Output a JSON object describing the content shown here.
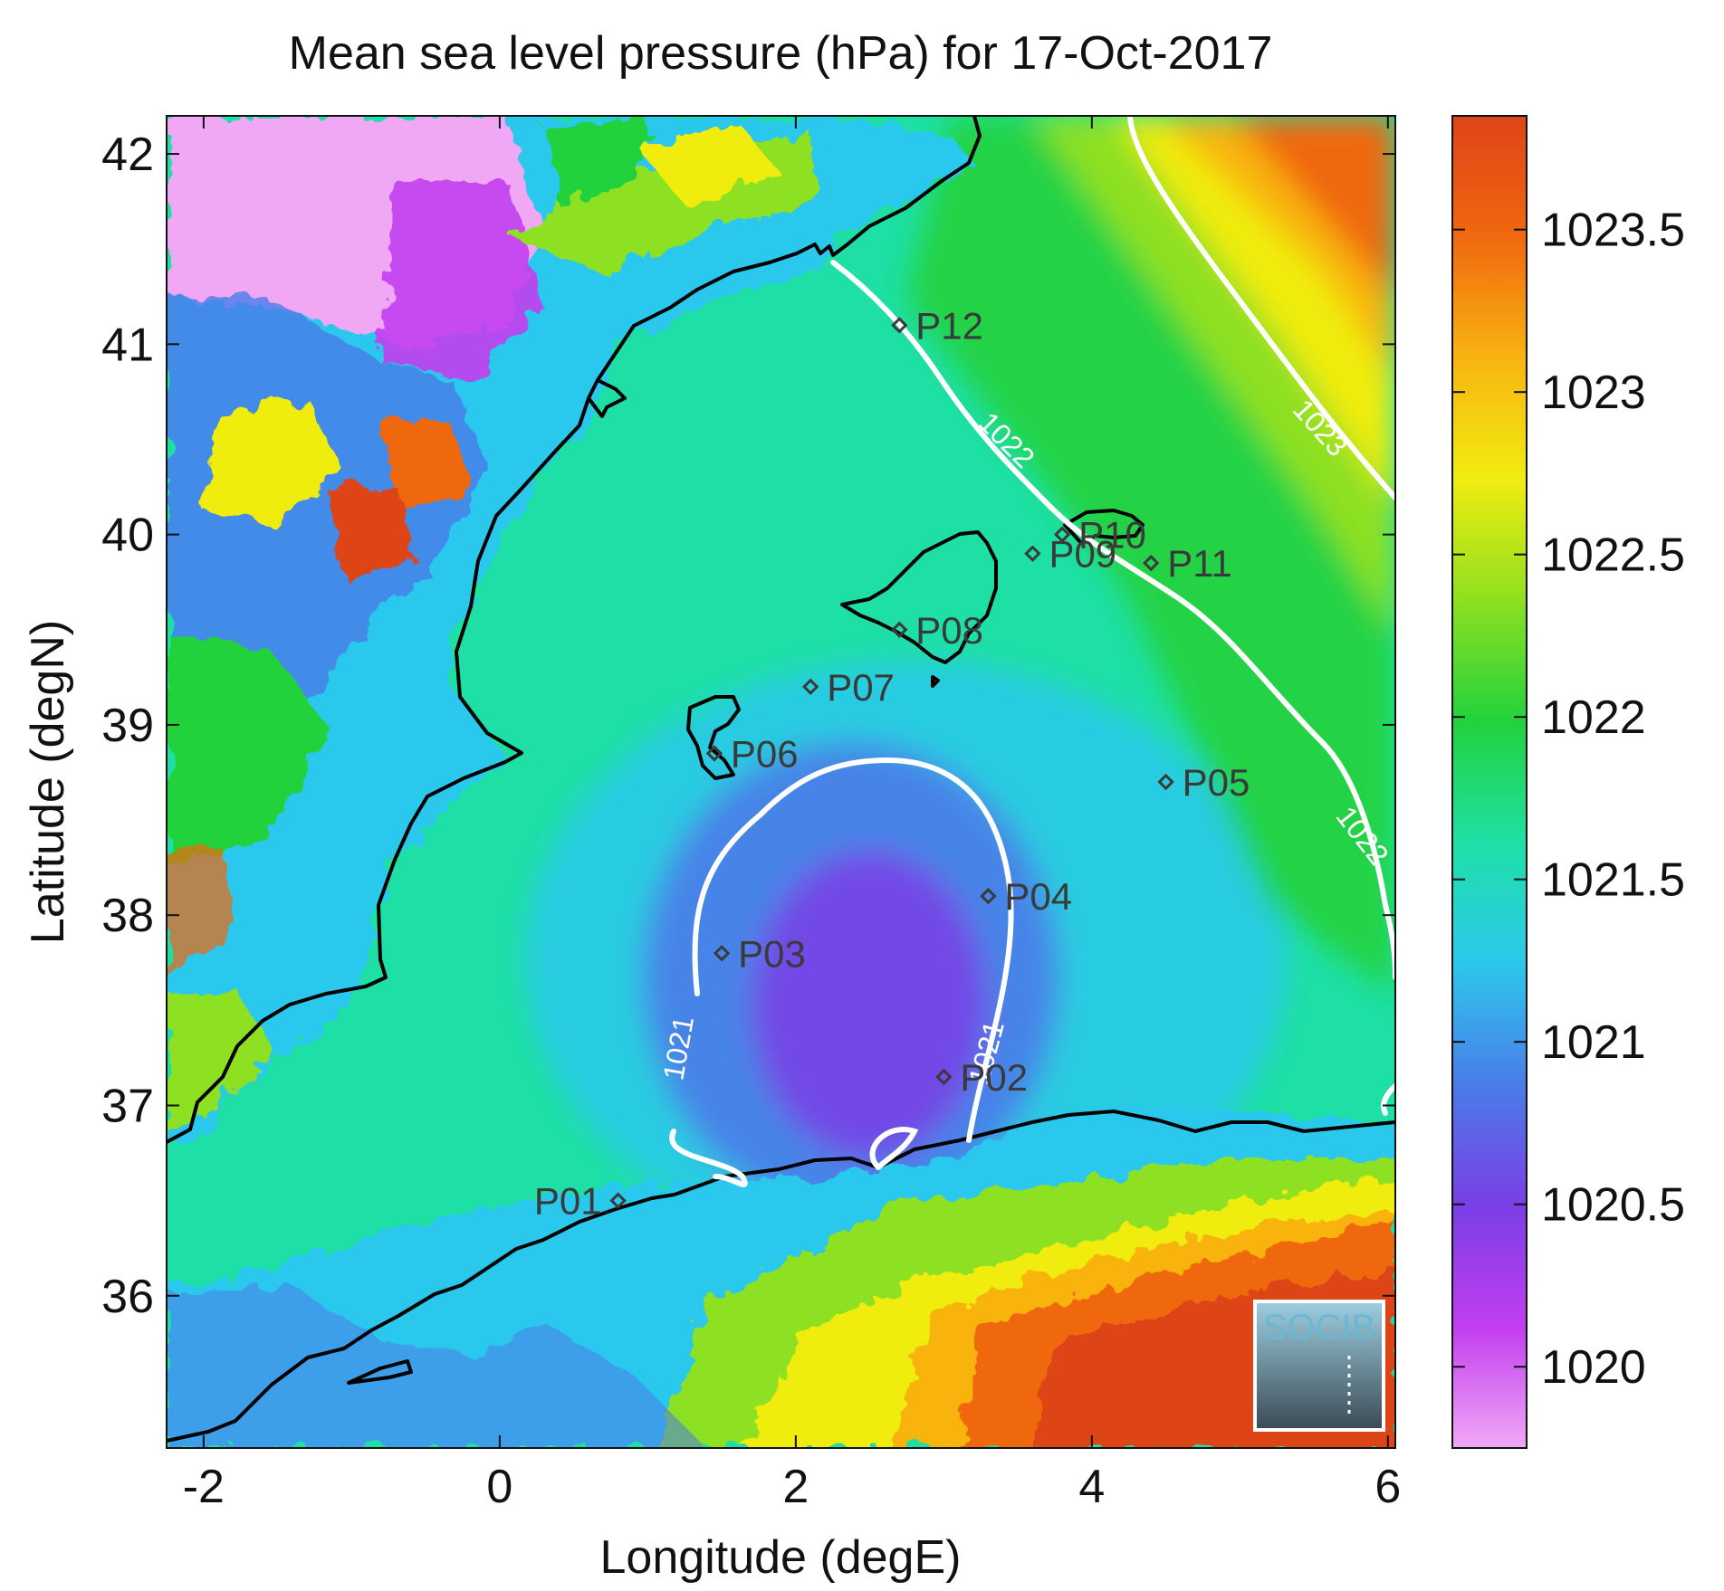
{
  "title": "Mean sea level pressure (hPa) for 17-Oct-2017",
  "x_axis": {
    "label": "Longitude (degE)",
    "ticks": [
      {
        "value": -2,
        "label": "-2"
      },
      {
        "value": 0,
        "label": "0"
      },
      {
        "value": 2,
        "label": "2"
      },
      {
        "value": 4,
        "label": "4"
      },
      {
        "value": 6,
        "label": "6"
      }
    ],
    "range": [
      -2.25,
      6.05
    ]
  },
  "y_axis": {
    "label": "Latitude (degN)",
    "ticks": [
      {
        "value": 36,
        "label": "36"
      },
      {
        "value": 37,
        "label": "37"
      },
      {
        "value": 38,
        "label": "38"
      },
      {
        "value": 39,
        "label": "39"
      },
      {
        "value": 40,
        "label": "40"
      },
      {
        "value": 41,
        "label": "41"
      },
      {
        "value": 42,
        "label": "42"
      }
    ],
    "range": [
      35.2,
      42.2
    ]
  },
  "colorbar": {
    "range": [
      1019.75,
      1023.85
    ],
    "ticks": [
      {
        "value": 1020,
        "label": "1020"
      },
      {
        "value": 1020.5,
        "label": "1020.5"
      },
      {
        "value": 1021,
        "label": "1021"
      },
      {
        "value": 1021.5,
        "label": "1021.5"
      },
      {
        "value": 1022,
        "label": "1022"
      },
      {
        "value": 1022.5,
        "label": "1022.5"
      },
      {
        "value": 1023,
        "label": "1023"
      },
      {
        "value": 1023.5,
        "label": "1023.5"
      }
    ],
    "colormap": [
      "#f0a8f5",
      "#c23ef0",
      "#7a3ee6",
      "#4a7ce8",
      "#2cc8ec",
      "#1ee0a6",
      "#22d23c",
      "#8ee020",
      "#f0ec10",
      "#f8b410",
      "#f06810",
      "#de4418"
    ]
  },
  "contour_labels": [
    "1021",
    "1021",
    "1022",
    "1022",
    "1023"
  ],
  "sites": [
    {
      "id": "P01",
      "lon": 0.8,
      "lat": 36.5
    },
    {
      "id": "P02",
      "lon": 3.0,
      "lat": 37.15
    },
    {
      "id": "P03",
      "lon": 1.5,
      "lat": 37.8
    },
    {
      "id": "P04",
      "lon": 3.3,
      "lat": 38.1
    },
    {
      "id": "P05",
      "lon": 4.5,
      "lat": 38.7
    },
    {
      "id": "P06",
      "lon": 1.45,
      "lat": 38.85
    },
    {
      "id": "P07",
      "lon": 2.1,
      "lat": 39.2
    },
    {
      "id": "P08",
      "lon": 2.7,
      "lat": 39.5
    },
    {
      "id": "P09",
      "lon": 3.6,
      "lat": 39.9
    },
    {
      "id": "P10",
      "lon": 3.8,
      "lat": 40.0
    },
    {
      "id": "P11",
      "lon": 4.4,
      "lat": 39.85
    },
    {
      "id": "P12",
      "lon": 2.7,
      "lat": 41.1
    }
  ],
  "logo": {
    "text": "SOCIB"
  },
  "colors": {
    "coastline": "#000000",
    "contour": "#ffffff",
    "site_marker": "#3a3a3a"
  }
}
